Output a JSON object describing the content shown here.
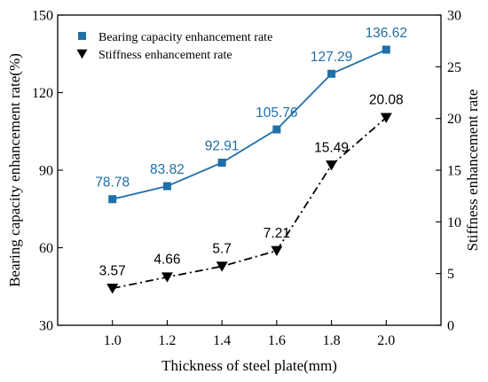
{
  "chart_data": {
    "type": "line",
    "x": [
      1.0,
      1.2,
      1.4,
      1.6,
      1.8,
      2.0
    ],
    "x_tick_labels": [
      "1.0",
      "1.2",
      "1.4",
      "1.6",
      "1.8",
      "2.0"
    ],
    "xlabel": "Thickness of steel plate(mm)",
    "ylabel_left": "Bearing capacity enhancement rate(%)",
    "ylabel_right": "Stiffness enhancement rate",
    "xlim": [
      0.8,
      2.2
    ],
    "ylim_left": [
      30,
      150
    ],
    "ylim_right": [
      0,
      30
    ],
    "yticks_left": [
      30,
      60,
      90,
      120,
      150
    ],
    "yticks_right": [
      0,
      5,
      10,
      15,
      20,
      25,
      30
    ],
    "grid": false,
    "legend_position": "top-left",
    "series": [
      {
        "name": "Bearing capacity enhancement rate",
        "axis": "left",
        "values": [
          78.78,
          83.82,
          92.91,
          105.76,
          127.29,
          136.62
        ],
        "labels": [
          "78.78",
          "83.82",
          "92.91",
          "105.76",
          "127.29",
          "136.62"
        ],
        "color": "#1f6fa8",
        "marker": "square",
        "line_style": "solid"
      },
      {
        "name": "Stiffness enhancement rate",
        "axis": "right",
        "values": [
          3.57,
          4.66,
          5.7,
          7.21,
          15.49,
          20.08
        ],
        "labels": [
          "3.57",
          "4.66",
          "5.7",
          "7.21",
          "15.49",
          "20.08"
        ],
        "color": "#000000",
        "marker": "triangle-down",
        "line_style": "dash-dot"
      }
    ]
  }
}
